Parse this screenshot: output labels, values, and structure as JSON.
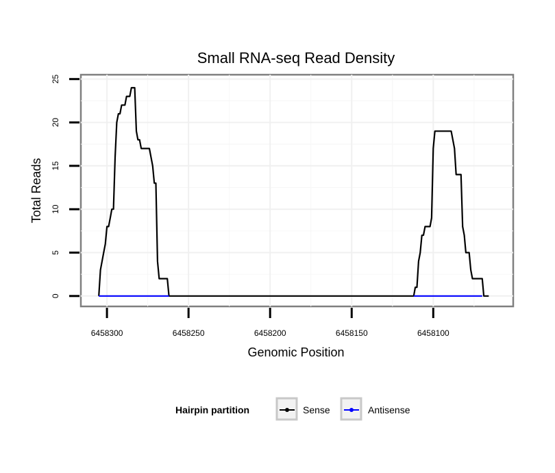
{
  "chart_data": {
    "type": "line",
    "title": "Small RNA-seq Read Density",
    "xlabel": "Genomic Position",
    "ylabel": "Total Reads",
    "xlim": [
      6458316,
      6458051
    ],
    "x_reversed": true,
    "ylim": [
      -1.2,
      25.5
    ],
    "xticks": [
      6458300,
      6458250,
      6458200,
      6458150,
      6458100
    ],
    "xtick_labels": [
      "6458300",
      "6458250",
      "6458200",
      "6458150",
      "6458100"
    ],
    "yticks": [
      0,
      5,
      10,
      15,
      20,
      25
    ],
    "ytick_labels": [
      "0",
      "5",
      "10",
      "15",
      "20",
      "25"
    ],
    "grid": true,
    "legend": {
      "title": "Hairpin partition",
      "position": "bottom"
    },
    "series": [
      {
        "name": "Sense",
        "color": "#000000",
        "x": [
          6458305,
          6458304,
          6458302,
          6458301,
          6458300,
          6458299,
          6458298,
          6458297,
          6458296,
          6458295,
          6458294,
          6458293,
          6458292,
          6458291,
          6458290,
          6458289,
          6458288,
          6458287,
          6458286,
          6458285,
          6458284,
          6458283,
          6458282,
          6458281,
          6458280,
          6458279,
          6458278,
          6458277,
          6458276,
          6458275,
          6458274,
          6458273,
          6458272,
          6458271,
          6458270,
          6458269,
          6458268,
          6458267,
          6458266,
          6458265,
          6458264,
          6458263,
          6458262,
          6458261,
          6458260,
          6458259,
          6458257,
          6458255,
          6458254,
          6458253,
          6458252,
          6458250,
          6458200,
          6458150,
          6458112,
          6458111,
          6458110,
          6458109,
          6458108,
          6458107,
          6458106,
          6458105,
          6458104,
          6458103,
          6458102,
          6458101,
          6458100,
          6458099,
          6458098,
          6458097,
          6458096,
          6458095,
          6458094,
          6458093,
          6458091,
          6458089,
          6458088,
          6458087,
          6458086,
          6458085,
          6458084,
          6458083,
          6458082,
          6458081,
          6458080,
          6458079,
          6458078,
          6458077,
          6458076,
          6458075,
          6458074,
          6458073,
          6458072,
          6458071,
          6458070,
          6458069,
          6458068,
          6458067,
          6458066
        ],
        "values": [
          0,
          3,
          5,
          6,
          8,
          8,
          9,
          10,
          10,
          16,
          20,
          21,
          21,
          22,
          22,
          22,
          23,
          23,
          23,
          24,
          24,
          24,
          19,
          18,
          18,
          17,
          17,
          17,
          17,
          17,
          17,
          16,
          15,
          13,
          13,
          4,
          2,
          2,
          2,
          2,
          2,
          2,
          0,
          0,
          0,
          0,
          0,
          0,
          0,
          0,
          0,
          0,
          0,
          0,
          0,
          1,
          1,
          4,
          5,
          7,
          7,
          8,
          8,
          8,
          8,
          9,
          17,
          19,
          19,
          19,
          19,
          19,
          19,
          19,
          19,
          19,
          18,
          17,
          14,
          14,
          14,
          14,
          8,
          7,
          5,
          5,
          5,
          3,
          2,
          2,
          2,
          2,
          2,
          2,
          2,
          0,
          0,
          0,
          0
        ]
      },
      {
        "name": "Antisense",
        "color": "#0000ff",
        "x": [
          6458305,
          6458262,
          6458112,
          6458070
        ],
        "values": [
          0,
          0,
          0,
          0
        ],
        "segments": [
          [
            0,
            1
          ],
          [
            2,
            3
          ]
        ]
      }
    ]
  }
}
